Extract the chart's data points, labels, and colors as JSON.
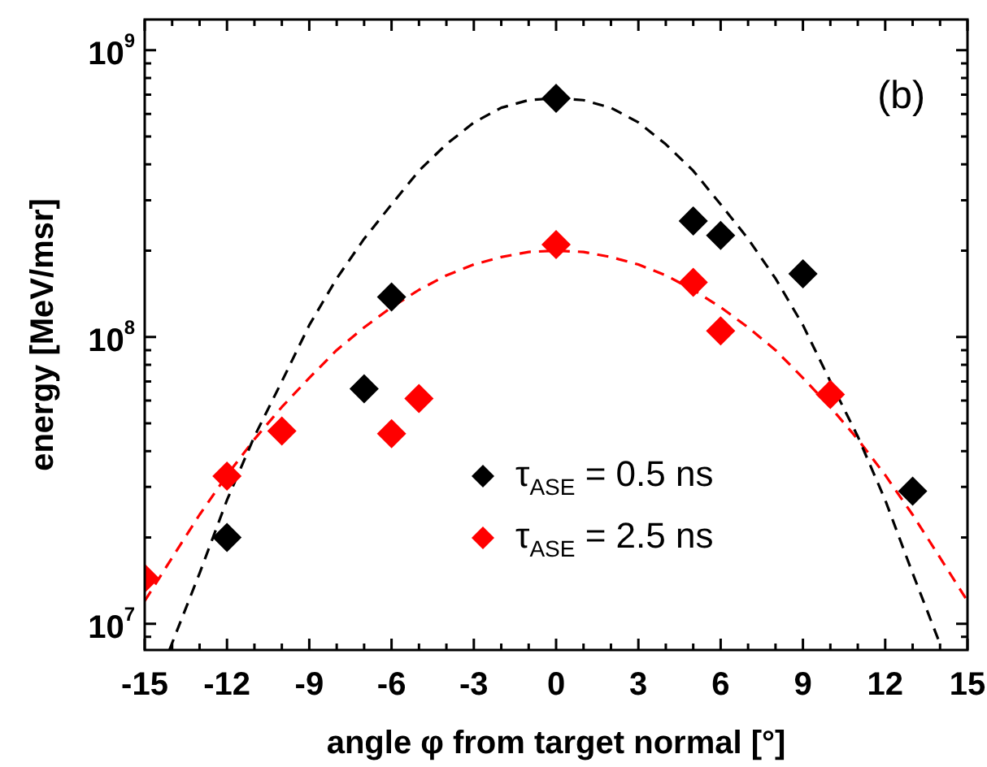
{
  "chart_data": {
    "type": "scatter",
    "xlabel": "angle φ from target normal [°]",
    "ylabel": "energy [MeV/msr]",
    "annotations": [
      "(b)"
    ],
    "log": "y",
    "grid": false,
    "legend": "bottom",
    "xlim": [
      -15,
      15
    ],
    "xticks": [
      -15,
      {
        "value": -14,
        "label": null
      },
      {
        "value": -13,
        "label": null
      },
      -12,
      {
        "value": -11,
        "label": null
      },
      {
        "value": -10,
        "label": null
      },
      -9,
      {
        "value": -8,
        "label": null
      },
      {
        "value": -7,
        "label": null
      },
      -6,
      {
        "value": -5,
        "label": null
      },
      {
        "value": -4,
        "label": null
      },
      -3,
      {
        "value": -2,
        "label": null
      },
      {
        "value": -1,
        "label": null
      },
      0,
      {
        "value": 1,
        "label": null
      },
      {
        "value": 2,
        "label": null
      },
      3,
      {
        "value": 4,
        "label": null
      },
      {
        "value": 5,
        "label": null
      },
      6,
      {
        "value": 7,
        "label": null
      },
      {
        "value": 8,
        "label": null
      },
      9,
      {
        "value": 10,
        "label": null
      },
      {
        "value": 11,
        "label": null
      },
      12,
      {
        "value": 13,
        "label": null
      },
      {
        "value": 14,
        "label": null
      },
      15
    ],
    "ylim": [
      8100000,
      1280000000
    ],
    "yticks": [
      {
        "value": 9000000,
        "label": null
      },
      {
        "value": 10000000,
        "label": "10$^{7}$"
      },
      {
        "value": 20000000,
        "label": null
      },
      {
        "value": 30000000,
        "label": null
      },
      {
        "value": 40000000,
        "label": null
      },
      {
        "value": 50000000,
        "label": null
      },
      {
        "value": 60000000,
        "label": null
      },
      {
        "value": 70000000,
        "label": null
      },
      {
        "value": 80000000,
        "label": null
      },
      {
        "value": 90000000,
        "label": null
      },
      {
        "value": 100000000,
        "label": "10$^{8}$"
      },
      {
        "value": 200000000,
        "label": null
      },
      {
        "value": 300000000,
        "label": null
      },
      {
        "value": 400000000,
        "label": null
      },
      {
        "value": 500000000,
        "label": null
      },
      {
        "value": 600000000,
        "label": null
      },
      {
        "value": 700000000,
        "label": null
      },
      {
        "value": 800000000,
        "label": null
      },
      {
        "value": 900000000,
        "label": null
      },
      {
        "value": 1000000000,
        "label": "10$^{9}$"
      }
    ],
    "series": [
      {
        "type": "line",
        "color": "#000000",
        "line_style": "dashed",
        "marker": "none",
        "x": [
          -14.1,
          -13,
          -12,
          -11,
          -10,
          -9,
          -8,
          -7,
          -6,
          -5,
          -4,
          -3,
          -2,
          -1,
          0,
          1,
          2,
          3,
          4,
          5,
          6,
          7,
          8,
          9,
          10,
          11,
          12,
          13,
          14
        ],
        "values": [
          8100000,
          15000000,
          27000000,
          45000000,
          70000000,
          110000000,
          160000000,
          220000000,
          290000000,
          380000000,
          470000000,
          560000000,
          630000000,
          670000000,
          680000000,
          670000000,
          630000000,
          560000000,
          470000000,
          380000000,
          290000000,
          220000000,
          160000000,
          110000000,
          70000000,
          45000000,
          27000000,
          15000000,
          8500000
        ]
      },
      {
        "type": "line",
        "color": "#ff0000",
        "line_style": "dashed",
        "marker": "none",
        "x": [
          -15,
          -14,
          -13,
          -12,
          -11,
          -10,
          -9,
          -8,
          -7,
          -6,
          -5,
          -4,
          -3,
          -2,
          -1,
          0,
          1,
          2,
          3,
          4,
          5,
          6,
          7,
          8,
          9,
          10,
          11,
          12,
          13,
          14,
          15
        ],
        "values": [
          12000000,
          17000000,
          24000000,
          33000000,
          44000000,
          57000000,
          72000000,
          90000000,
          108000000,
          127000000,
          146000000,
          164000000,
          179000000,
          190000000,
          198000000,
          200000000,
          198000000,
          190000000,
          179000000,
          164000000,
          146000000,
          127000000,
          108000000,
          90000000,
          72000000,
          57000000,
          44000000,
          33000000,
          24000000,
          17000000,
          12000000
        ]
      },
      {
        "type": "scatter",
        "name": "τ$_{ASE}$ = 0.5 ns",
        "color": "#000000",
        "marker": "diamond",
        "x": [
          -12,
          -7,
          -6,
          0,
          5,
          6,
          9,
          13
        ],
        "values": [
          20000000,
          66000000,
          138000000,
          680000000,
          254000000,
          226000000,
          166000000,
          29000000
        ]
      },
      {
        "type": "scatter",
        "name": "τ$_{ASE}$ = 2.5 ns",
        "color": "#ff0000",
        "marker": "diamond",
        "x": [
          -15,
          -12,
          -10,
          -6,
          -5,
          0,
          5,
          6,
          10
        ],
        "values": [
          14400000,
          32700000,
          47000000,
          46000000,
          61000000,
          210000000,
          155000000,
          105000000,
          63000000
        ]
      }
    ]
  }
}
